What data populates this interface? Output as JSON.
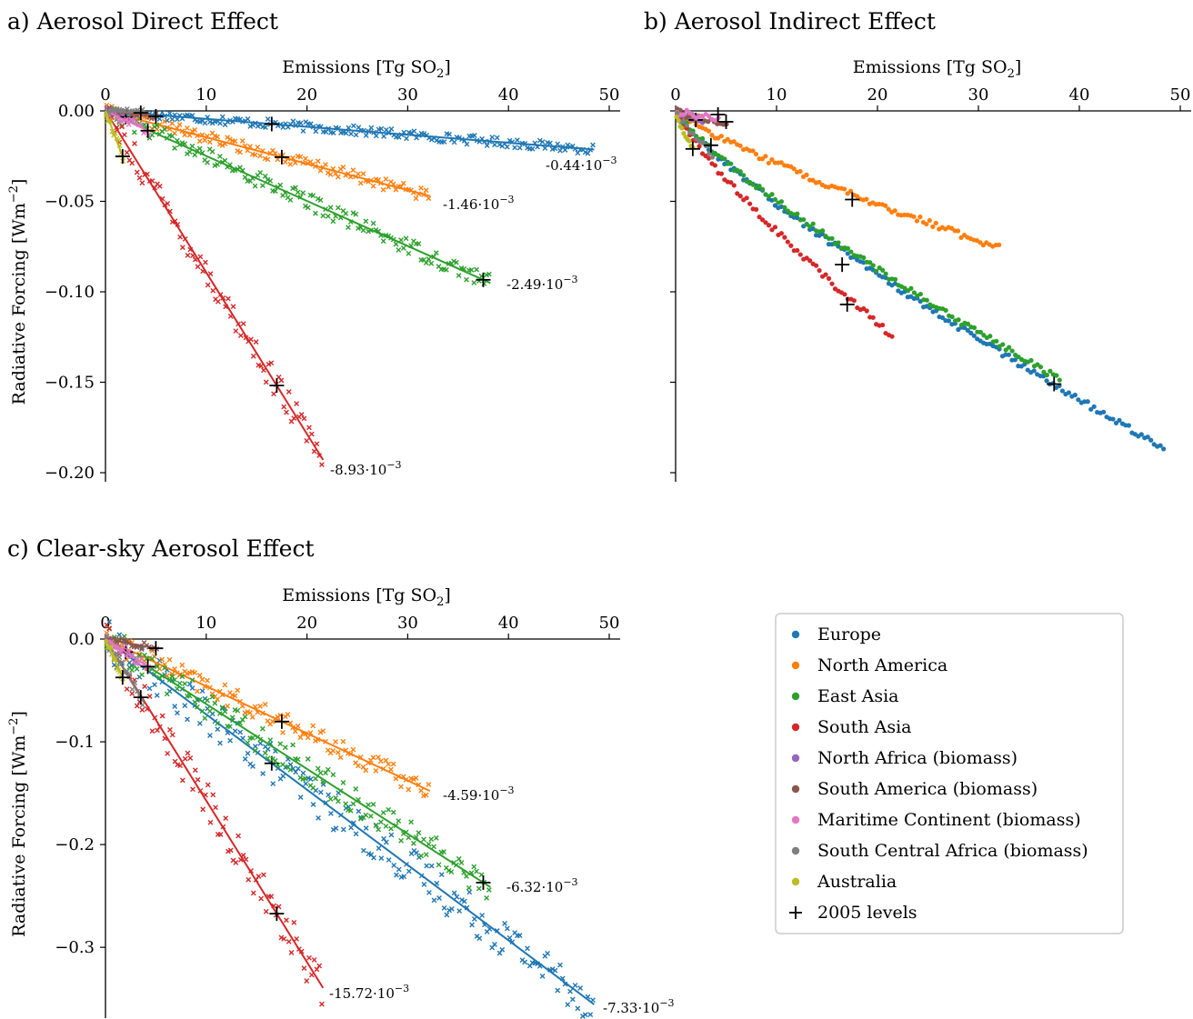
{
  "colors": {
    "Europe": "#1f77b4",
    "North America": "#ff7f0e",
    "East Asia": "#2ca02c",
    "South Asia": "#d62728",
    "North Africa (biomass)": "#9467bd",
    "South America (biomass)": "#8c564b",
    "Maritime Continent (biomass)": "#e377c2",
    "South Central Africa (biomass)": "#7f7f7f",
    "Australia": "#bcbd22",
    "marker_2005": "#000000"
  },
  "legend": {
    "entries": [
      {
        "label": "Europe",
        "marker": "dot",
        "color": "#1f77b4"
      },
      {
        "label": "North America",
        "marker": "dot",
        "color": "#ff7f0e"
      },
      {
        "label": "East Asia",
        "marker": "dot",
        "color": "#2ca02c"
      },
      {
        "label": "South Asia",
        "marker": "dot",
        "color": "#d62728"
      },
      {
        "label": "North Africa (biomass)",
        "marker": "dot",
        "color": "#9467bd"
      },
      {
        "label": "South America (biomass)",
        "marker": "dot",
        "color": "#8c564b"
      },
      {
        "label": "Maritime Continent (biomass)",
        "marker": "dot",
        "color": "#e377c2"
      },
      {
        "label": "South Central Africa (biomass)",
        "marker": "dot",
        "color": "#7f7f7f"
      },
      {
        "label": "Australia",
        "marker": "dot",
        "color": "#bcbd22"
      },
      {
        "label": "2005 levels",
        "marker": "plus",
        "color": "#000000"
      }
    ]
  },
  "chart_data": [
    {
      "panel": "a",
      "type": "scatter",
      "title": "a) Aerosol Direct Effect",
      "xlabel": "Emissions [Tg SO2]",
      "ylabel": "Radiative Forcing [Wm−2]",
      "xlim": [
        0,
        50
      ],
      "ylim": [
        -0.2,
        0
      ],
      "xticks": [
        0,
        10,
        20,
        30,
        40,
        50
      ],
      "yticks": [
        0.0,
        -0.05,
        -0.1,
        -0.15,
        -0.2
      ],
      "ytick_labels": [
        "0.00",
        "−0.05",
        "−0.10",
        "−0.15",
        "−0.20"
      ],
      "marker": "x",
      "grid": false,
      "series": [
        {
          "name": "Europe",
          "xmax": 48.5,
          "slope": -0.00044,
          "slope_label": "-0.44·10",
          "x2005": 16.5
        },
        {
          "name": "North America",
          "xmax": 32.2,
          "slope": -0.00146,
          "slope_label": "-1.46·10",
          "x2005": 17.5
        },
        {
          "name": "East Asia",
          "xmax": 38.2,
          "slope": -0.00249,
          "slope_label": "-2.49·10",
          "x2005": 37.5
        },
        {
          "name": "South Asia",
          "xmax": 21.6,
          "slope": -0.00893,
          "slope_label": "-8.93·10",
          "x2005": 17.0
        },
        {
          "name": "North Africa (biomass)",
          "xmax": 2.8,
          "slope": -0.0017,
          "x2005": 2.0
        },
        {
          "name": "South America (biomass)",
          "xmax": 5.2,
          "slope": -0.0006,
          "x2005": 5.0
        },
        {
          "name": "Maritime Continent (biomass)",
          "xmax": 4.4,
          "slope": -0.0026,
          "x2005": 4.2
        },
        {
          "name": "South Central Africa (biomass)",
          "xmax": 3.8,
          "slope": -0.0003,
          "x2005": 3.5
        },
        {
          "name": "Australia",
          "xmax": 1.8,
          "slope": -0.0148,
          "x2005": 1.7
        }
      ]
    },
    {
      "panel": "b",
      "type": "scatter",
      "title": "b) Aerosol Indirect Effect",
      "xlabel": "Emissions [Tg SO2]",
      "xlim": [
        0,
        50
      ],
      "ylim": [
        -0.2,
        0
      ],
      "xticks": [
        0,
        10,
        20,
        30,
        40,
        50
      ],
      "yticks": [
        0.0,
        -0.05,
        -0.1,
        -0.15,
        -0.2
      ],
      "marker": "dot",
      "grid": false,
      "series": [
        {
          "name": "Europe",
          "xmax": 48.5,
          "x2005": 16.5,
          "points_y_end": -0.187,
          "y2005": -0.085
        },
        {
          "name": "North America",
          "xmax": 32.2,
          "x2005": 17.5,
          "points_y_end": -0.076,
          "y2005": -0.049
        },
        {
          "name": "East Asia",
          "xmax": 38.2,
          "x2005": 37.5,
          "points_y_end": -0.149,
          "y2005": -0.151
        },
        {
          "name": "South Asia",
          "xmax": 21.6,
          "x2005": 17.0,
          "points_y_end": -0.125,
          "y2005": -0.107
        },
        {
          "name": "North Africa (biomass)",
          "xmax": 2.8,
          "x2005": 2.0,
          "points_y_end": -0.006,
          "y2005": -0.005
        },
        {
          "name": "South America (biomass)",
          "xmax": 5.2,
          "x2005": 5.0,
          "points_y_end": -0.008,
          "y2005": -0.006
        },
        {
          "name": "Maritime Continent (biomass)",
          "xmax": 4.4,
          "x2005": 4.2,
          "points_y_end": -0.004,
          "y2005": -0.002
        },
        {
          "name": "South Central Africa (biomass)",
          "xmax": 3.8,
          "x2005": 3.5,
          "points_y_end": -0.025,
          "y2005": -0.019
        },
        {
          "name": "Australia",
          "xmax": 1.8,
          "x2005": 1.7,
          "points_y_end": -0.022,
          "y2005": -0.021
        }
      ]
    },
    {
      "panel": "c",
      "type": "scatter",
      "title": "c) Clear-sky Aerosol Effect",
      "xlabel": "Emissions [Tg SO2]",
      "ylabel": "Radiative Forcing [Wm−2]",
      "xlim": [
        0,
        50
      ],
      "ylim": [
        -0.36,
        0
      ],
      "xticks": [
        0,
        10,
        20,
        30,
        40,
        50
      ],
      "yticks": [
        0.0,
        -0.1,
        -0.2,
        -0.3
      ],
      "ytick_labels": [
        "0.0",
        "−0.1",
        "−0.2",
        "−0.3"
      ],
      "marker": "x",
      "grid": false,
      "series": [
        {
          "name": "Europe",
          "xmax": 48.5,
          "slope": -0.00733,
          "slope_label": "-7.33·10",
          "x2005": 16.5
        },
        {
          "name": "North America",
          "xmax": 32.2,
          "slope": -0.00459,
          "slope_label": "-4.59·10",
          "x2005": 17.5
        },
        {
          "name": "East Asia",
          "xmax": 38.2,
          "slope": -0.00632,
          "slope_label": "-6.32·10",
          "x2005": 37.5
        },
        {
          "name": "South Asia",
          "xmax": 21.6,
          "slope": -0.01572,
          "slope_label": "-15.72·10",
          "x2005": 17.0
        },
        {
          "name": "North Africa (biomass)",
          "xmax": 2.8,
          "slope": -0.0064,
          "x2005": 2.0
        },
        {
          "name": "South America (biomass)",
          "xmax": 5.2,
          "slope": -0.0018,
          "x2005": 5.0
        },
        {
          "name": "Maritime Continent (biomass)",
          "xmax": 4.4,
          "slope": -0.0064,
          "x2005": 4.2
        },
        {
          "name": "South Central Africa (biomass)",
          "xmax": 3.8,
          "slope": -0.0162,
          "x2005": 3.5
        },
        {
          "name": "Australia",
          "xmax": 1.8,
          "slope": -0.022,
          "x2005": 1.7
        }
      ]
    }
  ]
}
